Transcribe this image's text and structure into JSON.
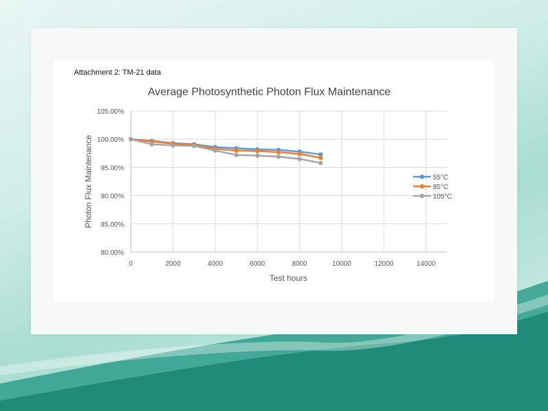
{
  "header": {
    "attachment": "Attachment 2: TM-21 data"
  },
  "colors": {
    "s55": "#5b9bd5",
    "s85": "#ed7d31",
    "s105": "#a5a5a5",
    "grid": "#d9d9d9"
  },
  "chart_data": {
    "type": "line",
    "title": "Average Photosynthetic Photon Flux Maintenance",
    "xlabel": "Test hours",
    "ylabel": "Photon Flux Maintenance",
    "xlim": [
      0,
      14000
    ],
    "ylim": [
      80,
      105
    ],
    "x_ticks": [
      0,
      2000,
      4000,
      6000,
      8000,
      10000,
      12000,
      14000
    ],
    "x_tick_labels": [
      "0",
      "2000",
      "4000",
      "6000",
      "8000",
      "10000",
      "12000",
      "14000"
    ],
    "y_ticks": [
      80,
      85,
      90,
      95,
      100,
      105
    ],
    "y_tick_labels": [
      "80.00%",
      "85.00%",
      "90.00%",
      "95.00%",
      "100.00%",
      "105.00%"
    ],
    "x": [
      0,
      1000,
      2000,
      3000,
      4000,
      5000,
      6000,
      7000,
      8000,
      9000
    ],
    "series": [
      {
        "name": "55°C",
        "color_key": "s55",
        "values": [
          100.0,
          99.7,
          99.3,
          99.1,
          98.6,
          98.4,
          98.2,
          98.1,
          97.8,
          97.3
        ]
      },
      {
        "name": "85°C",
        "color_key": "s85",
        "values": [
          100.0,
          99.6,
          99.2,
          99.0,
          98.3,
          98.0,
          97.9,
          97.7,
          97.4,
          96.7
        ]
      },
      {
        "name": "105°C",
        "color_key": "s105",
        "values": [
          100.0,
          99.1,
          98.9,
          98.8,
          98.0,
          97.2,
          97.1,
          96.9,
          96.5,
          95.8
        ]
      }
    ]
  }
}
